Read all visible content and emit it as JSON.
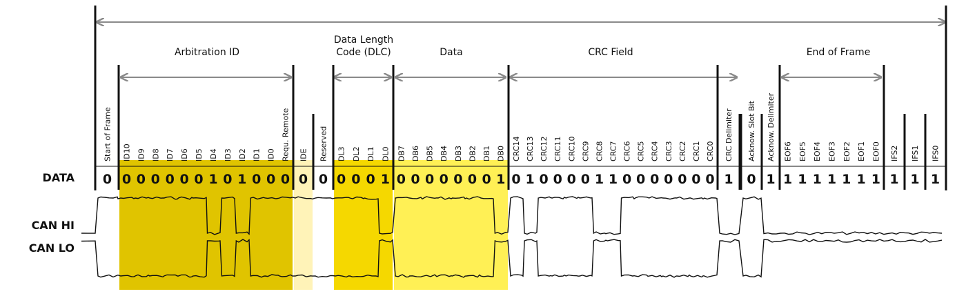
{
  "sections": [
    {
      "key": "arbitration",
      "label": "Arbitration ID"
    },
    {
      "key": "dlc",
      "label_lines": [
        "Data Length",
        "Code (DLC)"
      ]
    },
    {
      "key": "data",
      "label": "Data"
    },
    {
      "key": "crc",
      "label": "CRC Field"
    },
    {
      "key": "eof",
      "label": "End of Frame"
    }
  ],
  "row_labels": {
    "data": "DATA",
    "can_hi": "CAN HI",
    "can_lo": "CAN LO"
  },
  "fields": [
    {
      "name": "Start of Frame",
      "bits": [
        "0"
      ],
      "group": "sof"
    },
    {
      "name": "Arbitration ID",
      "labels": [
        "ID10",
        "ID9",
        "ID8",
        "ID7",
        "ID6",
        "ID5",
        "ID4",
        "ID3",
        "ID2",
        "ID1",
        "ID0",
        "Requ. Remote"
      ],
      "bits": [
        "0",
        "0",
        "0",
        "0",
        "0",
        "0",
        "1",
        "0",
        "1",
        "0",
        "0",
        "0"
      ],
      "group": "arbitration",
      "color": "#e0c400"
    },
    {
      "name": "IDE",
      "bits": [
        "0"
      ],
      "group": "ide",
      "color": "#fff3b8"
    },
    {
      "name": "Reserved",
      "bits": [
        "0"
      ],
      "group": "reserved"
    },
    {
      "name": "DLC",
      "labels": [
        "DL3",
        "DL2",
        "DL1",
        "DL0"
      ],
      "bits": [
        "0",
        "0",
        "0",
        "1"
      ],
      "group": "dlc",
      "color": "#f5d800"
    },
    {
      "name": "Data",
      "labels": [
        "DB7",
        "DB6",
        "DB5",
        "DB4",
        "DB3",
        "DB2",
        "DB1",
        "DB0"
      ],
      "bits": [
        "0",
        "0",
        "0",
        "0",
        "0",
        "0",
        "0",
        "1"
      ],
      "group": "data",
      "color": "#fff055"
    },
    {
      "name": "CRC",
      "labels": [
        "CRC14",
        "CRC13",
        "CRC12",
        "CRC11",
        "CRC10",
        "CRC9",
        "CRC8",
        "CRC7",
        "CRC6",
        "CRC5",
        "CRC4",
        "CRC3",
        "CRC2",
        "CRC1",
        "CRC0"
      ],
      "bits": [
        "0",
        "1",
        "0",
        "0",
        "0",
        "0",
        "1",
        "1",
        "0",
        "0",
        "0",
        "0",
        "0",
        "0",
        "0"
      ],
      "group": "crc"
    },
    {
      "name": "CRC Delimiter",
      "bits": [
        "1"
      ],
      "group": "crcdel"
    },
    {
      "name": "Acknow. Slot Bit",
      "bits": [
        "0"
      ],
      "group": "ack"
    },
    {
      "name": "Acknow. Delimiter",
      "bits": [
        "1"
      ],
      "group": "ackdel"
    },
    {
      "name": "End of Frame",
      "labels": [
        "EOF6",
        "EOF5",
        "EOF4",
        "EOF3",
        "EOF2",
        "EOF1",
        "EOF0"
      ],
      "bits": [
        "1",
        "1",
        "1",
        "1",
        "1",
        "1",
        "1"
      ],
      "group": "eof"
    },
    {
      "name": "IFS2",
      "bits": [
        "1"
      ],
      "group": "ifs2"
    },
    {
      "name": "IFS1",
      "bits": [
        "1"
      ],
      "group": "ifs1"
    },
    {
      "name": "IFS0",
      "bits": [
        "1"
      ],
      "group": "ifs0"
    }
  ],
  "colors": {
    "line": "#111111",
    "arrow": "#8a8a8a",
    "highlight_arbitration": "#e0c400",
    "highlight_ide": "#fff3b8",
    "highlight_dlc": "#f5d800",
    "highlight_data": "#fff055"
  }
}
